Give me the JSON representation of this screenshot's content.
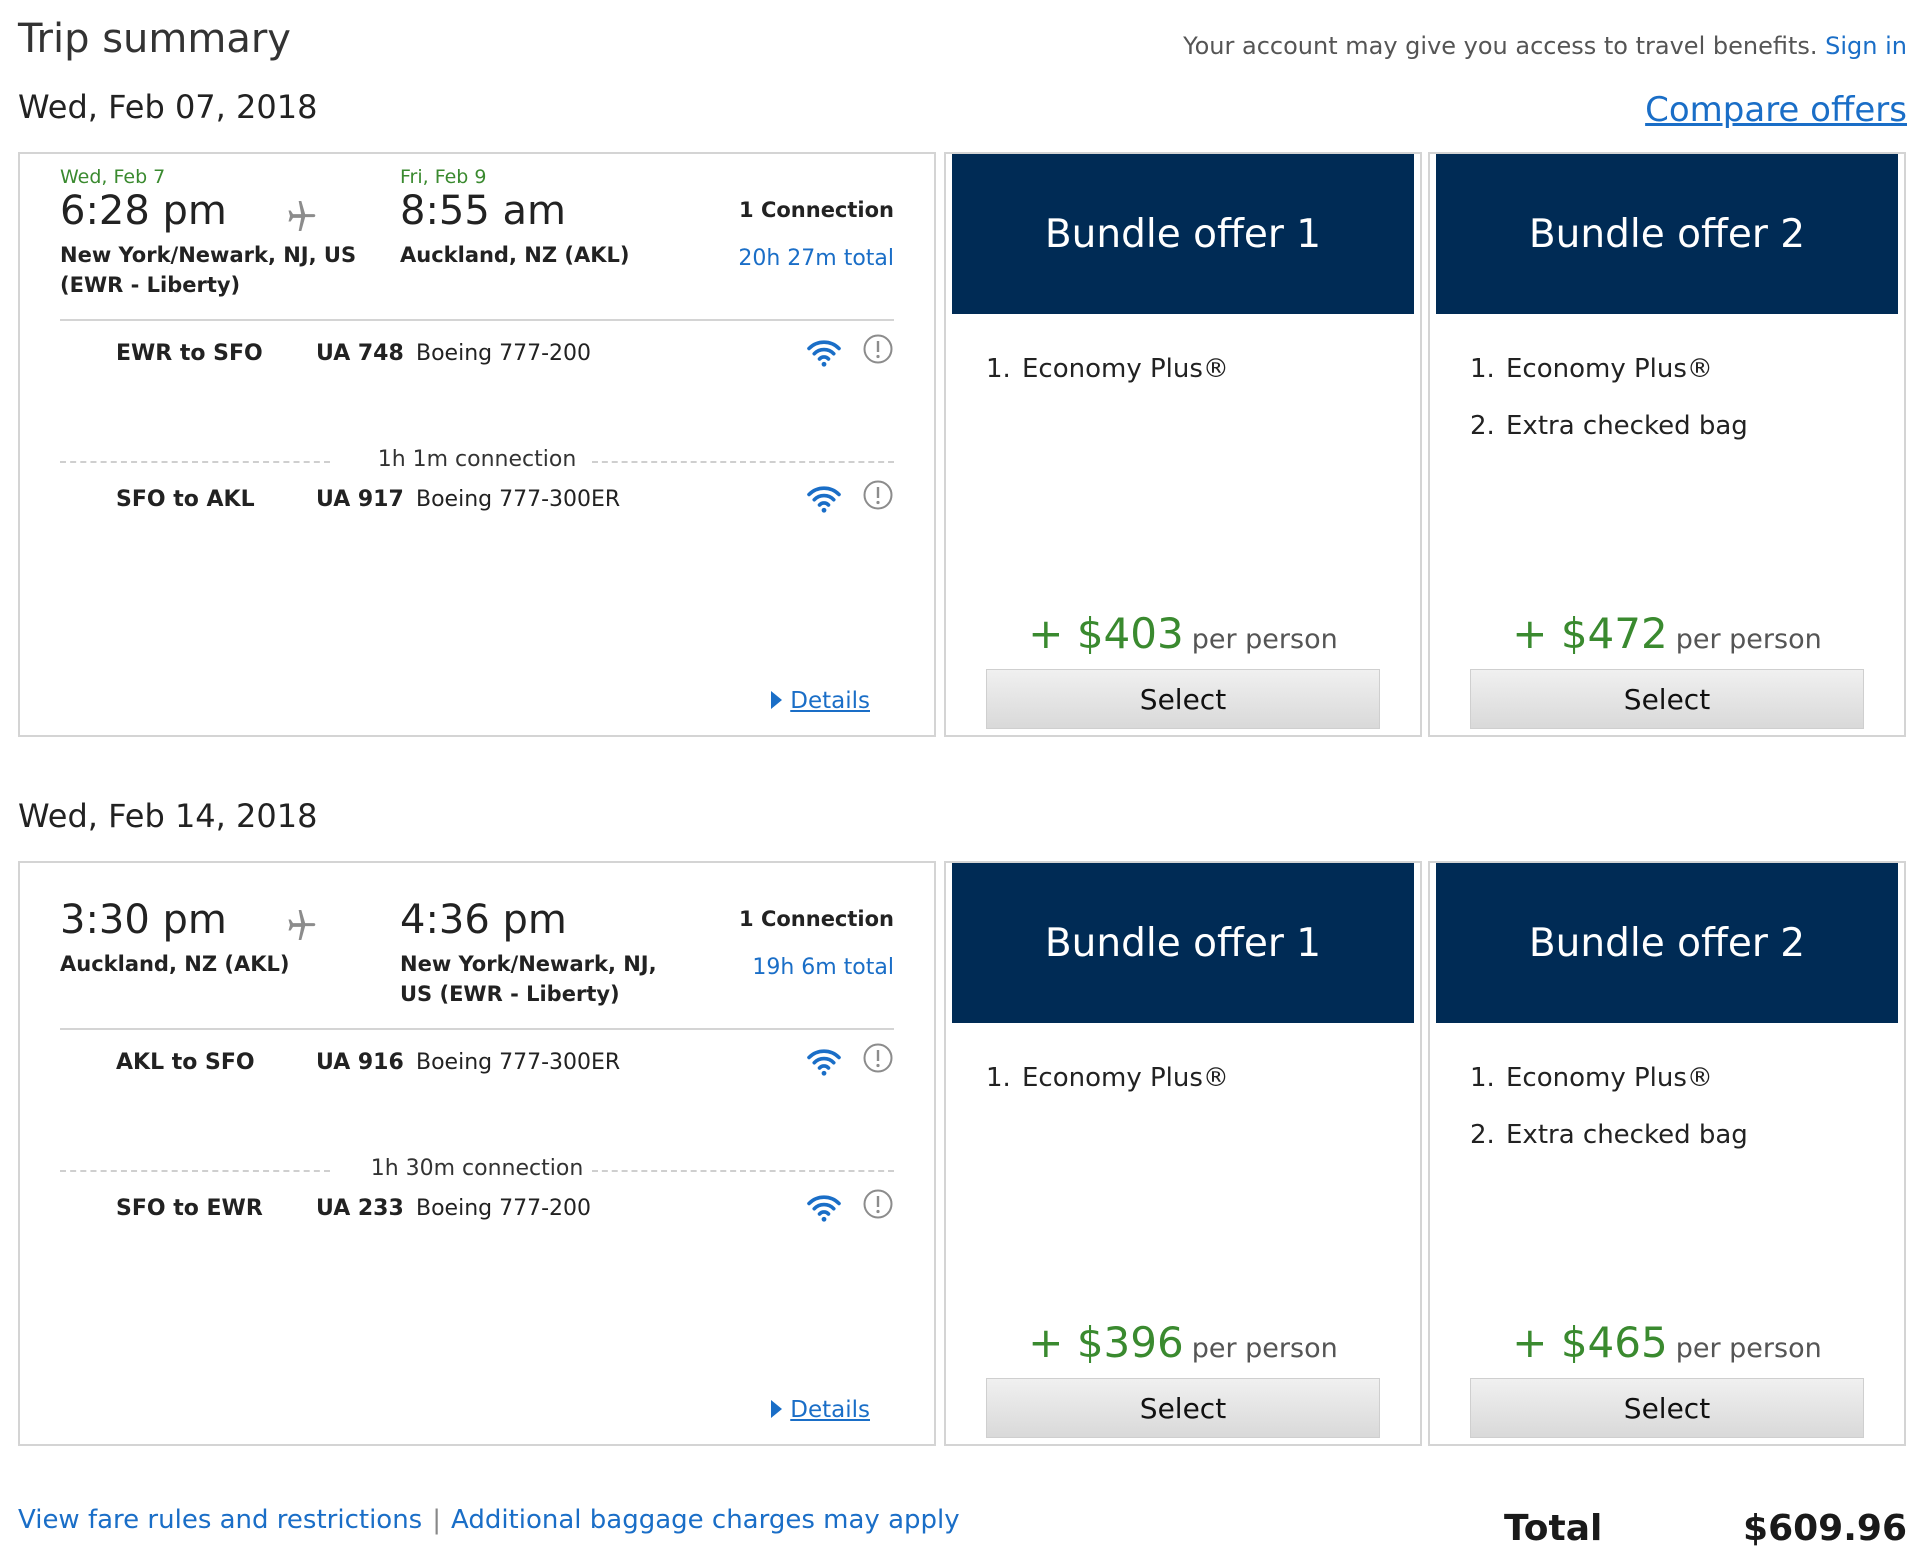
{
  "header": {
    "title": "Trip summary",
    "benefits_text": "Your account may give you access to travel benefits.",
    "sign_in": "Sign in",
    "compare_offers": "Compare offers"
  },
  "trips": [
    {
      "date_title": "Wed, Feb 07, 2018",
      "depart_date": "Wed, Feb 7",
      "depart_time": "6:28 pm",
      "depart_loc_1": "New York/Newark, NJ, US",
      "depart_loc_2": "(EWR - Liberty)",
      "arrive_date": "Fri, Feb 9",
      "arrive_time": "8:55 am",
      "arrive_loc_1": "Auckland, NZ (AKL)",
      "arrive_loc_2": "",
      "connections": "1 Connection",
      "total_duration": "20h 27m total",
      "segments": [
        {
          "route": "EWR to SFO",
          "flight": "UA 748",
          "aircraft": "Boeing 777-200"
        },
        {
          "route": "SFO to AKL",
          "flight": "UA 917",
          "aircraft": "Boeing 777-300ER"
        }
      ],
      "connection_text": "1h 1m connection",
      "details": "Details",
      "offers": [
        {
          "title": "Bundle offer 1",
          "items": [
            "Economy Plus®"
          ],
          "price": "+ $403",
          "per_person": "per person",
          "select": "Select"
        },
        {
          "title": "Bundle offer 2",
          "items": [
            "Economy Plus®",
            "Extra checked bag"
          ],
          "price": "+ $472",
          "per_person": "per person",
          "select": "Select"
        }
      ]
    },
    {
      "date_title": "Wed, Feb 14, 2018",
      "depart_date": "",
      "depart_time": "3:30 pm",
      "depart_loc_1": "Auckland, NZ (AKL)",
      "depart_loc_2": "",
      "arrive_date": "",
      "arrive_time": "4:36 pm",
      "arrive_loc_1": "New York/Newark, NJ,",
      "arrive_loc_2": "US (EWR - Liberty)",
      "connections": "1 Connection",
      "total_duration": "19h 6m total",
      "segments": [
        {
          "route": "AKL to SFO",
          "flight": "UA 916",
          "aircraft": "Boeing 777-300ER"
        },
        {
          "route": "SFO to EWR",
          "flight": "UA 233",
          "aircraft": "Boeing 777-200"
        }
      ],
      "connection_text": "1h 30m connection",
      "details": "Details",
      "offers": [
        {
          "title": "Bundle offer 1",
          "items": [
            "Economy Plus®"
          ],
          "price": "+ $396",
          "per_person": "per person",
          "select": "Select"
        },
        {
          "title": "Bundle offer 2",
          "items": [
            "Economy Plus®",
            "Extra checked bag"
          ],
          "price": "+ $465",
          "per_person": "per person",
          "select": "Select"
        }
      ]
    }
  ],
  "footer": {
    "fare_rules": "View fare rules and restrictions",
    "separator": "|",
    "baggage": "Additional baggage charges may apply",
    "total_label": "Total",
    "total_value": "$609.96"
  },
  "icons": {
    "plane": "airplane-icon",
    "wifi": "wifi-icon",
    "info": "info-circle-icon",
    "details_arrow": "caret-right-icon"
  },
  "colors": {
    "navy": "#002b55",
    "link": "#1a6ec7",
    "price_green": "#3a8a2f"
  }
}
